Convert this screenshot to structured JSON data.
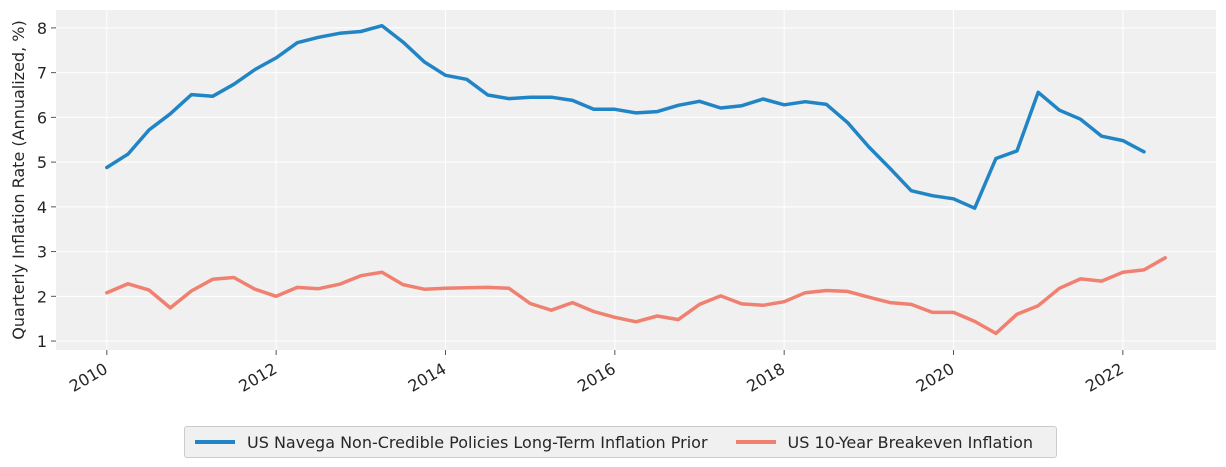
{
  "chart_data": {
    "type": "line",
    "title": "",
    "xlabel": "",
    "ylabel": "Quarterly Inflation Rate (Annualized, %)",
    "xlim": [
      2009.4,
      2023.1
    ],
    "ylim": [
      0.8,
      8.4
    ],
    "x_ticks": [
      2010,
      2012,
      2014,
      2016,
      2018,
      2020,
      2022
    ],
    "x_tick_labels": [
      "2010",
      "2012",
      "2014",
      "2016",
      "2018",
      "2020",
      "2022"
    ],
    "y_ticks": [
      1,
      2,
      3,
      4,
      5,
      6,
      7,
      8
    ],
    "y_tick_labels": [
      "1",
      "2",
      "3",
      "4",
      "5",
      "6",
      "7",
      "8"
    ],
    "grid": true,
    "legend_position": "bottom-center",
    "series": [
      {
        "name": "US Navega Non-Credible Policies Long-Term Inflation Prior",
        "color": "#2185c5",
        "x": [
          2010.0,
          2010.25,
          2010.5,
          2010.75,
          2011.0,
          2011.25,
          2011.5,
          2011.75,
          2012.0,
          2012.25,
          2012.5,
          2012.75,
          2013.0,
          2013.25,
          2013.5,
          2013.75,
          2014.0,
          2014.25,
          2014.5,
          2014.75,
          2015.0,
          2015.25,
          2015.5,
          2015.75,
          2016.0,
          2016.25,
          2016.5,
          2016.75,
          2017.0,
          2017.25,
          2017.5,
          2017.75,
          2018.0,
          2018.25,
          2018.5,
          2018.75,
          2019.0,
          2019.25,
          2019.5,
          2019.75,
          2020.0,
          2020.25,
          2020.5,
          2020.75,
          2021.0,
          2021.25,
          2021.5,
          2021.75,
          2022.0,
          2022.25
        ],
        "values": [
          4.88,
          5.18,
          5.72,
          6.08,
          6.51,
          6.47,
          6.74,
          7.07,
          7.33,
          7.67,
          7.79,
          7.88,
          7.92,
          8.05,
          7.68,
          7.24,
          6.94,
          6.85,
          6.5,
          6.42,
          6.45,
          6.45,
          6.38,
          6.18,
          6.18,
          6.1,
          6.13,
          6.27,
          6.36,
          6.21,
          6.26,
          6.41,
          6.28,
          6.35,
          6.29,
          5.88,
          5.34,
          4.86,
          4.36,
          4.25,
          4.18,
          3.97,
          5.08,
          5.25,
          6.56,
          6.16,
          5.96,
          5.58,
          5.48,
          5.23
        ]
      },
      {
        "name": "US 10-Year Breakeven Inflation",
        "color": "#f08070",
        "x": [
          2010.0,
          2010.25,
          2010.5,
          2010.75,
          2011.0,
          2011.25,
          2011.5,
          2011.75,
          2012.0,
          2012.25,
          2012.5,
          2012.75,
          2013.0,
          2013.25,
          2013.5,
          2013.75,
          2014.0,
          2014.25,
          2014.5,
          2014.75,
          2015.0,
          2015.25,
          2015.5,
          2015.75,
          2016.0,
          2016.25,
          2016.5,
          2016.75,
          2017.0,
          2017.25,
          2017.5,
          2017.75,
          2018.0,
          2018.25,
          2018.5,
          2018.75,
          2019.0,
          2019.25,
          2019.5,
          2019.75,
          2020.0,
          2020.25,
          2020.5,
          2020.75,
          2021.0,
          2021.25,
          2021.5,
          2021.75,
          2022.0,
          2022.25,
          2022.5
        ],
        "values": [
          2.08,
          2.28,
          2.14,
          1.74,
          2.12,
          2.38,
          2.42,
          2.16,
          2.0,
          2.2,
          2.17,
          2.27,
          2.46,
          2.54,
          2.26,
          2.16,
          2.18,
          2.19,
          2.2,
          2.18,
          1.84,
          1.69,
          1.86,
          1.66,
          1.53,
          1.43,
          1.56,
          1.48,
          1.82,
          2.01,
          1.83,
          1.8,
          1.88,
          2.08,
          2.13,
          2.11,
          1.98,
          1.86,
          1.82,
          1.64,
          1.64,
          1.44,
          1.17,
          1.6,
          1.79,
          2.18,
          2.39,
          2.34,
          2.54,
          2.59,
          2.86
        ]
      }
    ]
  }
}
